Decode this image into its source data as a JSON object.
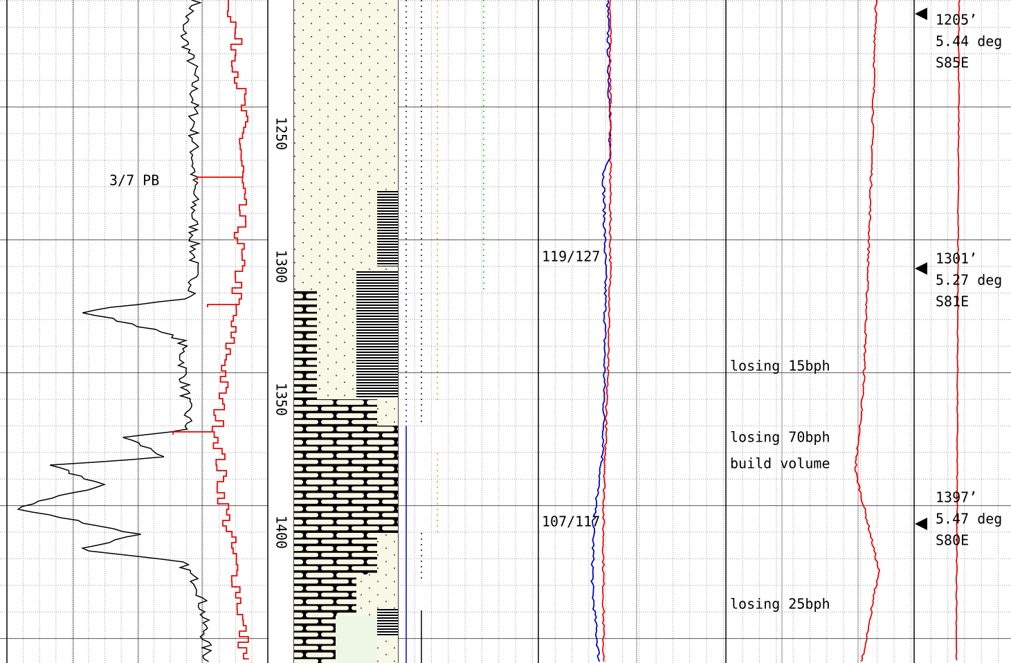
{
  "depth_track": {
    "labels": [
      1250,
      1300,
      1350,
      1400
    ]
  },
  "annotations": [
    "3/7  PB"
  ],
  "gas_readings": [
    "119/127",
    "107/117"
  ],
  "remarks": [
    "losing 15bph",
    "losing 70bph",
    "build volume",
    "losing 25bph"
  ],
  "surveys": [
    {
      "depth": "1205’",
      "inclination": "5.44 deg",
      "azimuth": "S85E"
    },
    {
      "depth": "1301’",
      "inclination": "5.27 deg",
      "azimuth": "S81E"
    },
    {
      "depth": "1397’",
      "inclination": "5.47 deg",
      "azimuth": "S80E"
    }
  ]
}
